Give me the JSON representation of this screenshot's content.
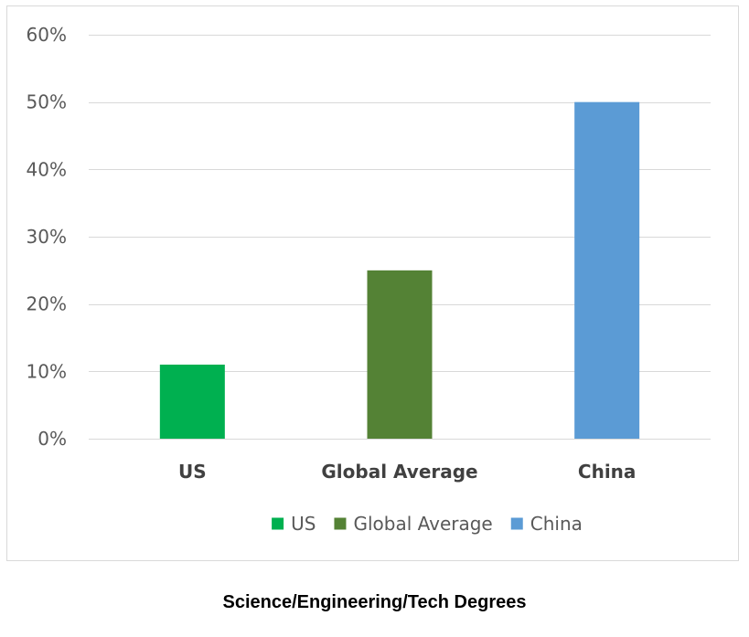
{
  "caption": "Science/Engineering/Tech Degrees",
  "chart_data": {
    "type": "bar",
    "title": "",
    "xlabel": "",
    "ylabel": "",
    "categories": [
      "US",
      "Global Average",
      "China"
    ],
    "values": [
      11,
      25,
      50
    ],
    "colors": [
      "#00b050",
      "#548235",
      "#5b9bd5"
    ],
    "ylim": [
      0,
      60
    ],
    "yticks": [
      0,
      10,
      20,
      30,
      40,
      50,
      60
    ],
    "ytick_labels": [
      "0%",
      "10%",
      "20%",
      "30%",
      "40%",
      "50%",
      "60%"
    ],
    "value_unit": "%",
    "grid": true,
    "legend": {
      "position": "bottom",
      "entries": [
        "US",
        "Global Average",
        "China"
      ]
    }
  }
}
